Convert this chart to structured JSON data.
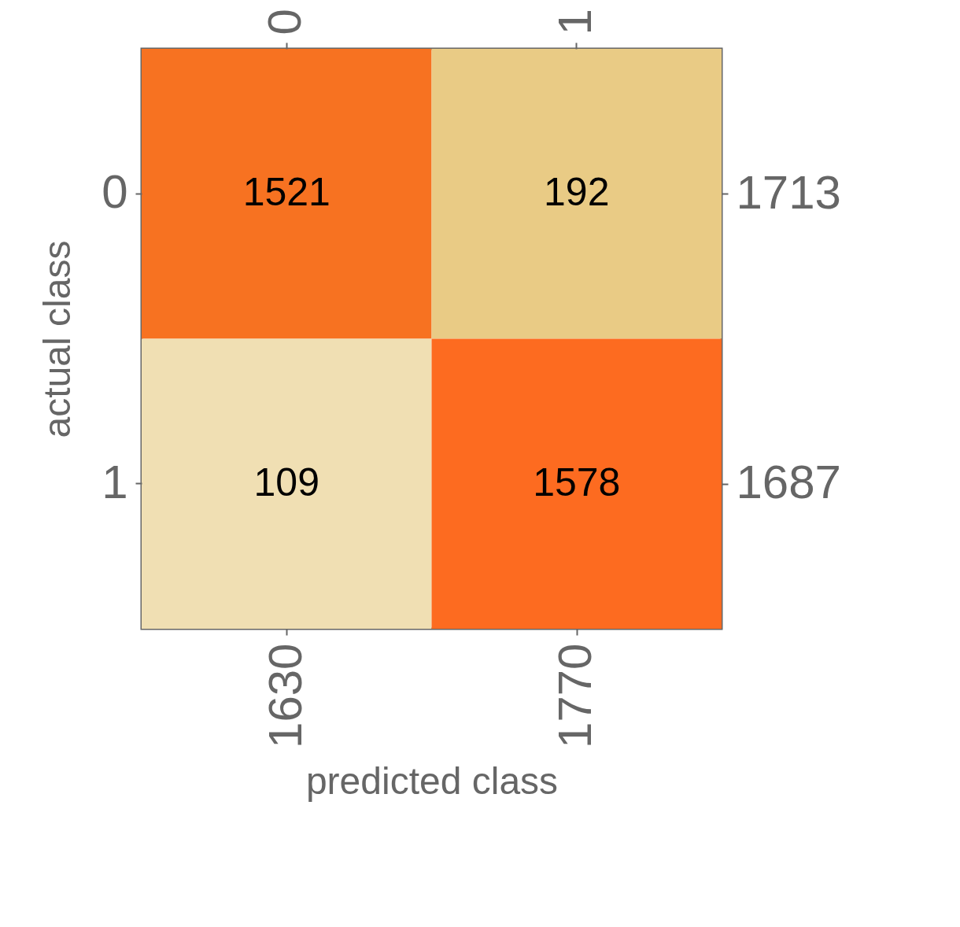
{
  "chart_data": {
    "type": "heatmap",
    "xlabel": "predicted class",
    "ylabel": "actual class",
    "categories": [
      "0",
      "1"
    ],
    "y_categories": [
      "0",
      "1"
    ],
    "y2_categories": [
      "1713",
      "1687"
    ],
    "cells": [
      [
        1521,
        192
      ],
      [
        109,
        1578
      ]
    ],
    "data_labels": true,
    "annotations": [
      "1630",
      "1770"
    ]
  }
}
